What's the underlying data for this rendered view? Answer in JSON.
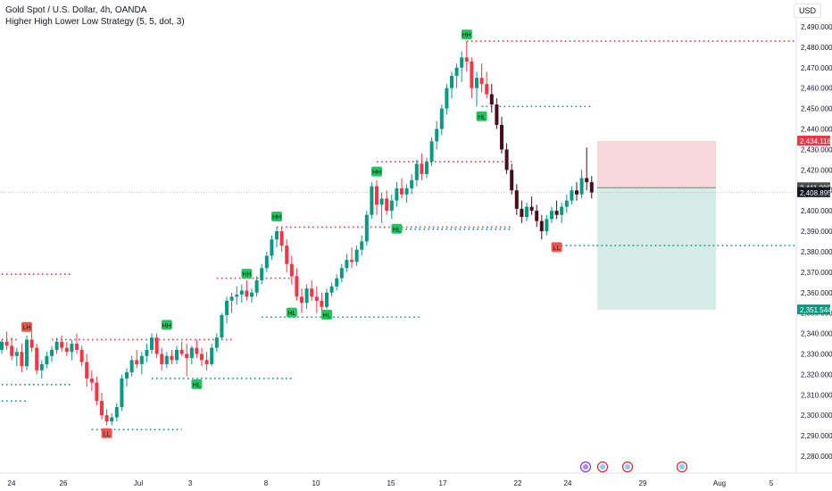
{
  "header": {
    "title": "Gold Spot / U.S. Dollar, 4h, OANDA",
    "indicator": "Higher High Lower Low Strategy (5, 5, dot, 3)"
  },
  "axis": {
    "currency": "USD"
  },
  "colors": {
    "up": "#089981",
    "down": "#f23645",
    "dark_candle": "#4a0b1c",
    "hh_label": "#22c55e",
    "ll_label": "#ef5350",
    "stop_zone": "#f8d7da",
    "target_zone": "#d5ece6"
  },
  "chart_data": {
    "type": "candlestick",
    "y_ticks": [
      "2,490.000",
      "2,480.000",
      "2,470.000",
      "2,460.000",
      "2,450.000",
      "2,440.000",
      "2,430.000",
      "2,420.000",
      "2,410.000",
      "2,400.000",
      "2,390.000",
      "2,380.000",
      "2,370.000",
      "2,360.000",
      "2,350.000",
      "2,340.000",
      "2,330.000",
      "2,320.000",
      "2,310.000",
      "2,300.000",
      "2,290.000",
      "2,280.000"
    ],
    "x_ticks": [
      "24",
      "26",
      "Jul",
      "3",
      "8",
      "10",
      "15",
      "17",
      "22",
      "24",
      "29",
      "Aug",
      "5"
    ],
    "price_labels": [
      {
        "value": "2,434.118",
        "color": "#f23645"
      },
      {
        "value": "2,411.295",
        "color": "#4f4f4f"
      },
      {
        "value": "2,408.895",
        "color": "#131722"
      },
      {
        "value": "2,351.544",
        "color": "#089981"
      }
    ],
    "candles": [
      [
        2332,
        2337,
        2330,
        2336
      ],
      [
        2336,
        2341,
        2332,
        2334
      ],
      [
        2334,
        2338,
        2327,
        2329
      ],
      [
        2329,
        2333,
        2324,
        2331
      ],
      [
        2331,
        2335,
        2321,
        2324
      ],
      [
        2324,
        2339,
        2322,
        2337
      ],
      [
        2337,
        2341,
        2331,
        2333
      ],
      [
        2333,
        2335,
        2320,
        2322
      ],
      [
        2322,
        2327,
        2318,
        2325
      ],
      [
        2325,
        2331,
        2323,
        2329
      ],
      [
        2329,
        2334,
        2326,
        2332
      ],
      [
        2332,
        2338,
        2330,
        2336
      ],
      [
        2336,
        2339,
        2331,
        2333
      ],
      [
        2333,
        2336,
        2329,
        2331
      ],
      [
        2331,
        2337,
        2327,
        2335
      ],
      [
        2335,
        2340,
        2330,
        2332
      ],
      [
        2332,
        2334,
        2324,
        2326
      ],
      [
        2326,
        2330,
        2314,
        2318
      ],
      [
        2318,
        2322,
        2312,
        2316
      ],
      [
        2316,
        2319,
        2305,
        2307
      ],
      [
        2307,
        2311,
        2298,
        2300
      ],
      [
        2300,
        2303,
        2295,
        2297
      ],
      [
        2297,
        2301,
        2295,
        2299
      ],
      [
        2299,
        2306,
        2297,
        2304
      ],
      [
        2304,
        2320,
        2302,
        2318
      ],
      [
        2318,
        2323,
        2314,
        2321
      ],
      [
        2321,
        2329,
        2319,
        2327
      ],
      [
        2327,
        2332,
        2323,
        2325
      ],
      [
        2325,
        2331,
        2320,
        2329
      ],
      [
        2329,
        2335,
        2326,
        2332
      ],
      [
        2332,
        2340,
        2330,
        2338
      ],
      [
        2338,
        2340,
        2328,
        2330
      ],
      [
        2330,
        2333,
        2322,
        2325
      ],
      [
        2325,
        2331,
        2323,
        2329
      ],
      [
        2329,
        2332,
        2325,
        2327
      ],
      [
        2327,
        2334,
        2325,
        2332
      ],
      [
        2332,
        2336,
        2329,
        2330
      ],
      [
        2330,
        2335,
        2319,
        2328
      ],
      [
        2328,
        2334,
        2325,
        2333
      ],
      [
        2333,
        2337,
        2328,
        2330
      ],
      [
        2330,
        2333,
        2324,
        2327
      ],
      [
        2327,
        2331,
        2322,
        2325
      ],
      [
        2325,
        2335,
        2324,
        2333
      ],
      [
        2333,
        2340,
        2331,
        2338
      ],
      [
        2338,
        2350,
        2337,
        2349
      ],
      [
        2349,
        2358,
        2345,
        2356
      ],
      [
        2356,
        2360,
        2350,
        2358
      ],
      [
        2358,
        2363,
        2354,
        2359
      ],
      [
        2359,
        2364,
        2355,
        2361
      ],
      [
        2361,
        2366,
        2356,
        2358
      ],
      [
        2358,
        2362,
        2355,
        2360
      ],
      [
        2360,
        2368,
        2358,
        2366
      ],
      [
        2366,
        2374,
        2364,
        2372
      ],
      [
        2372,
        2380,
        2370,
        2378
      ],
      [
        2378,
        2388,
        2376,
        2386
      ],
      [
        2386,
        2392,
        2382,
        2390
      ],
      [
        2390,
        2392,
        2380,
        2383
      ],
      [
        2383,
        2386,
        2370,
        2374
      ],
      [
        2374,
        2378,
        2364,
        2368
      ],
      [
        2368,
        2372,
        2356,
        2358
      ],
      [
        2358,
        2362,
        2350,
        2355
      ],
      [
        2355,
        2364,
        2352,
        2362
      ],
      [
        2362,
        2366,
        2356,
        2358
      ],
      [
        2358,
        2363,
        2350,
        2356
      ],
      [
        2356,
        2360,
        2348,
        2353
      ],
      [
        2353,
        2362,
        2352,
        2360
      ],
      [
        2360,
        2365,
        2358,
        2363
      ],
      [
        2363,
        2369,
        2361,
        2367
      ],
      [
        2367,
        2374,
        2365,
        2372
      ],
      [
        2372,
        2379,
        2370,
        2376
      ],
      [
        2376,
        2382,
        2372,
        2375
      ],
      [
        2375,
        2383,
        2373,
        2381
      ],
      [
        2381,
        2388,
        2378,
        2385
      ],
      [
        2385,
        2400,
        2383,
        2398
      ],
      [
        2398,
        2414,
        2396,
        2412
      ],
      [
        2412,
        2415,
        2398,
        2403
      ],
      [
        2403,
        2409,
        2394,
        2406
      ],
      [
        2406,
        2410,
        2398,
        2400
      ],
      [
        2400,
        2408,
        2396,
        2405
      ],
      [
        2405,
        2414,
        2402,
        2411
      ],
      [
        2411,
        2416,
        2406,
        2408
      ],
      [
        2408,
        2413,
        2404,
        2411
      ],
      [
        2411,
        2418,
        2408,
        2415
      ],
      [
        2415,
        2425,
        2412,
        2423
      ],
      [
        2423,
        2428,
        2415,
        2418
      ],
      [
        2418,
        2426,
        2416,
        2424
      ],
      [
        2424,
        2436,
        2422,
        2434
      ],
      [
        2434,
        2444,
        2430,
        2440
      ],
      [
        2440,
        2452,
        2437,
        2450
      ],
      [
        2450,
        2462,
        2447,
        2460
      ],
      [
        2460,
        2468,
        2455,
        2466
      ],
      [
        2466,
        2472,
        2460,
        2470
      ],
      [
        2470,
        2478,
        2463,
        2475
      ],
      [
        2475,
        2483,
        2468,
        2473
      ],
      [
        2473,
        2475,
        2455,
        2460
      ],
      [
        2460,
        2468,
        2451,
        2465
      ],
      [
        2465,
        2472,
        2458,
        2462
      ],
      [
        2462,
        2468,
        2455,
        2457
      ],
      [
        2457,
        2462,
        2448,
        2452
      ],
      [
        2452,
        2455,
        2440,
        2442
      ],
      [
        2442,
        2446,
        2428,
        2430
      ],
      [
        2430,
        2433,
        2418,
        2420
      ],
      [
        2420,
        2423,
        2408,
        2410
      ],
      [
        2410,
        2413,
        2398,
        2401
      ],
      [
        2401,
        2405,
        2394,
        2397
      ],
      [
        2397,
        2404,
        2395,
        2402
      ],
      [
        2402,
        2407,
        2398,
        2400
      ],
      [
        2400,
        2403,
        2392,
        2395
      ],
      [
        2395,
        2398,
        2386,
        2390
      ],
      [
        2390,
        2398,
        2388,
        2396
      ],
      [
        2396,
        2402,
        2394,
        2400
      ],
      [
        2400,
        2405,
        2396,
        2398
      ],
      [
        2398,
        2404,
        2394,
        2402
      ],
      [
        2402,
        2408,
        2399,
        2405
      ],
      [
        2405,
        2412,
        2403,
        2410
      ],
      [
        2410,
        2414,
        2405,
        2408
      ],
      [
        2408,
        2420,
        2406,
        2416
      ],
      [
        2416,
        2431,
        2410,
        2414
      ],
      [
        2414,
        2417,
        2406,
        2409
      ]
    ],
    "swing_labels": [
      {
        "text": "HH",
        "i": 33,
        "price": 2344,
        "kind": "high"
      },
      {
        "text": "HL",
        "i": 39,
        "price": 2315,
        "kind": "low"
      },
      {
        "text": "LH",
        "i": 5,
        "price": 2343,
        "kind": "lowtag"
      },
      {
        "text": "LL",
        "i": 21,
        "price": 2291,
        "kind": "lowtag"
      },
      {
        "text": "HH",
        "i": 55,
        "price": 2397,
        "kind": "high"
      },
      {
        "text": "HH",
        "i": 49,
        "price": 2369,
        "kind": "high"
      },
      {
        "text": "HL",
        "i": 58,
        "price": 2350,
        "kind": "low"
      },
      {
        "text": "HL",
        "i": 65,
        "price": 2349,
        "kind": "low"
      },
      {
        "text": "HH",
        "i": 75,
        "price": 2419,
        "kind": "high"
      },
      {
        "text": "HL",
        "i": 79,
        "price": 2391,
        "kind": "low"
      },
      {
        "text": "HH",
        "i": 93,
        "price": 2486,
        "kind": "high"
      },
      {
        "text": "HL",
        "i": 96,
        "price": 2446,
        "kind": "low"
      },
      {
        "text": "LL",
        "i": 111,
        "price": 2382,
        "kind": "lowtag"
      }
    ],
    "levels": [
      {
        "price": 2483,
        "from": 93,
        "to": 170,
        "color": "#f23645"
      },
      {
        "price": 2451,
        "from": 96,
        "to": 118,
        "color": "#089981"
      },
      {
        "price": 2424,
        "from": 75,
        "to": 102,
        "color": "#f23645"
      },
      {
        "price": 2392,
        "from": 55,
        "to": 102,
        "color": "#f23645"
      },
      {
        "price": 2391,
        "from": 79,
        "to": 102,
        "color": "#089981"
      },
      {
        "price": 2383,
        "from": 111,
        "to": 170,
        "color": "#089981"
      },
      {
        "price": 2367,
        "from": 43,
        "to": 58,
        "color": "#f23645"
      },
      {
        "price": 2348,
        "from": 52,
        "to": 84,
        "color": "#089981"
      },
      {
        "price": 2337,
        "from": 10,
        "to": 46,
        "color": "#f23645"
      },
      {
        "price": 2318,
        "from": 30,
        "to": 58,
        "color": "#089981"
      },
      {
        "price": 2315,
        "from": 0,
        "to": 14,
        "color": "#089981"
      },
      {
        "price": 2293,
        "from": 18,
        "to": 36,
        "color": "#089981"
      },
      {
        "price": 2369,
        "from": 0,
        "to": 14,
        "color": "#f23645"
      },
      {
        "price": 2337,
        "from": 0,
        "to": 3,
        "color": "#f23645"
      },
      {
        "price": 2307,
        "from": 0,
        "to": 5,
        "color": "#089981"
      }
    ],
    "position": {
      "entry": 2411.295,
      "stop": 2434.118,
      "target": 2351.544
    },
    "last_price": 2408.895,
    "ylim": [
      2275,
      2494
    ]
  }
}
